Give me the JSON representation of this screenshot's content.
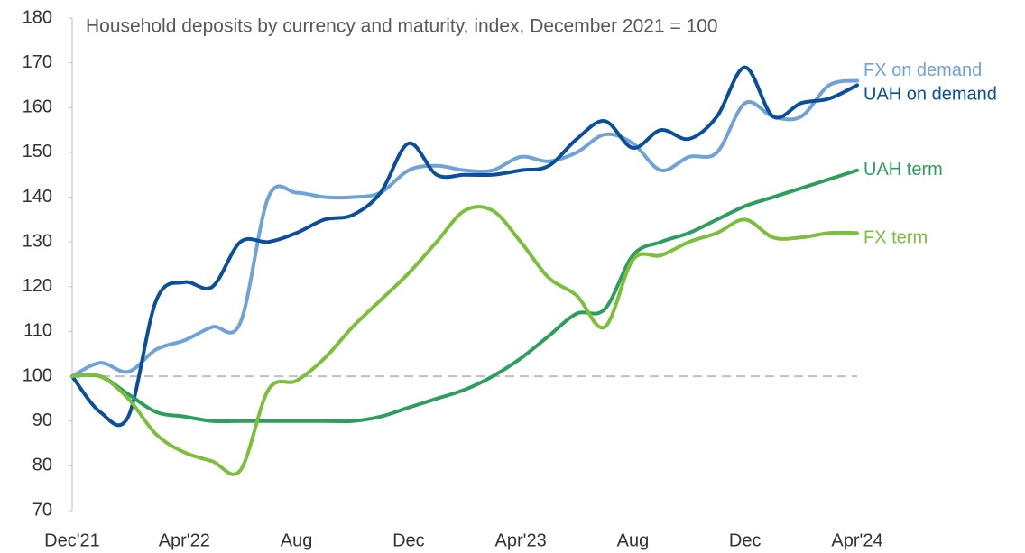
{
  "chart_data": {
    "type": "line",
    "title": "Household deposits by currency and maturity, index, December 2021 = 100",
    "categories": [
      "Dec'21",
      null,
      null,
      null,
      "Apr'22",
      null,
      null,
      null,
      "Aug",
      null,
      null,
      null,
      "Dec",
      null,
      null,
      null,
      "Apr'23",
      null,
      null,
      null,
      "Aug",
      null,
      null,
      null,
      "Dec",
      null,
      null,
      null,
      "Apr'24"
    ],
    "series": [
      {
        "name": "FX on demand",
        "color": "#6fa3d8",
        "values": [
          100,
          103,
          101,
          106,
          108,
          111,
          112,
          140,
          141,
          140,
          140,
          141,
          146,
          147,
          146,
          146,
          149,
          148,
          150,
          154,
          152,
          146,
          149,
          150,
          161,
          158,
          158,
          165,
          166
        ]
      },
      {
        "name": "UAH on demand",
        "color": "#0b4f9c",
        "values": [
          100,
          92,
          91,
          117,
          121,
          120,
          130,
          130,
          132,
          135,
          136,
          141,
          152,
          145,
          145,
          145,
          146,
          147,
          153,
          157,
          151,
          155,
          153,
          158,
          169,
          158,
          161,
          162,
          165
        ]
      },
      {
        "name": "UAH term",
        "color": "#2e9e5e",
        "values": [
          100,
          100,
          96,
          92,
          91,
          90,
          90,
          90,
          90,
          90,
          90,
          91,
          93,
          95,
          97,
          100,
          104,
          109,
          114,
          115,
          127,
          130,
          132,
          135,
          138,
          140,
          142,
          144,
          146
        ]
      },
      {
        "name": "FX term",
        "color": "#7bbf3a",
        "values": [
          100,
          100,
          95,
          87,
          83,
          81,
          79,
          97,
          99,
          104,
          111,
          117,
          123,
          130,
          137,
          137,
          130,
          122,
          118,
          111,
          126,
          127,
          130,
          132,
          135,
          131,
          131,
          132,
          132
        ]
      }
    ],
    "reference_line": 100,
    "ylim": [
      70,
      180
    ],
    "yticks": [
      70,
      80,
      90,
      100,
      110,
      120,
      130,
      140,
      150,
      160,
      170,
      180
    ]
  }
}
